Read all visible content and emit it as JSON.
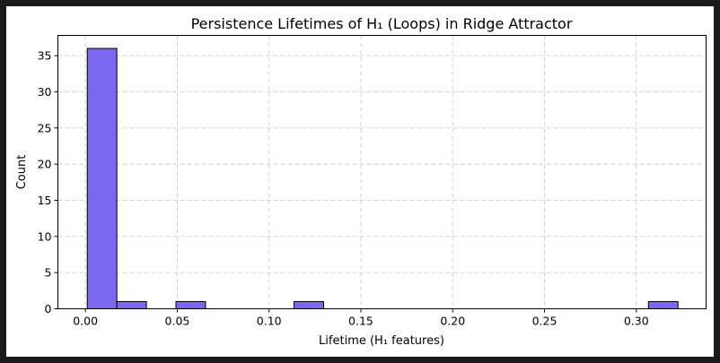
{
  "chart_data": {
    "type": "bar",
    "title": "Persistence Lifetimes of H₁ (Loops) in Ridge Attractor",
    "xlabel": "Lifetime (H₁ features)",
    "ylabel": "Count",
    "xlim": [
      -0.015,
      0.338
    ],
    "ylim": [
      0,
      37.8
    ],
    "xticks": [
      0.0,
      0.05,
      0.1,
      0.15,
      0.2,
      0.25,
      0.3
    ],
    "xtick_labels": [
      "0.00",
      "0.05",
      "0.10",
      "0.15",
      "0.20",
      "0.25",
      "0.30"
    ],
    "yticks": [
      0,
      5,
      10,
      15,
      20,
      25,
      30,
      35
    ],
    "ytick_labels": [
      "0",
      "5",
      "10",
      "15",
      "20",
      "25",
      "30",
      "35"
    ],
    "bin_width": 0.0161,
    "bins": [
      {
        "x0": 0.001,
        "count": 36
      },
      {
        "x0": 0.0171,
        "count": 1
      },
      {
        "x0": 0.0493,
        "count": 1
      },
      {
        "x0": 0.1136,
        "count": 1
      },
      {
        "x0": 0.3066,
        "count": 1
      }
    ],
    "color": "#7B68EE",
    "grid": true
  }
}
